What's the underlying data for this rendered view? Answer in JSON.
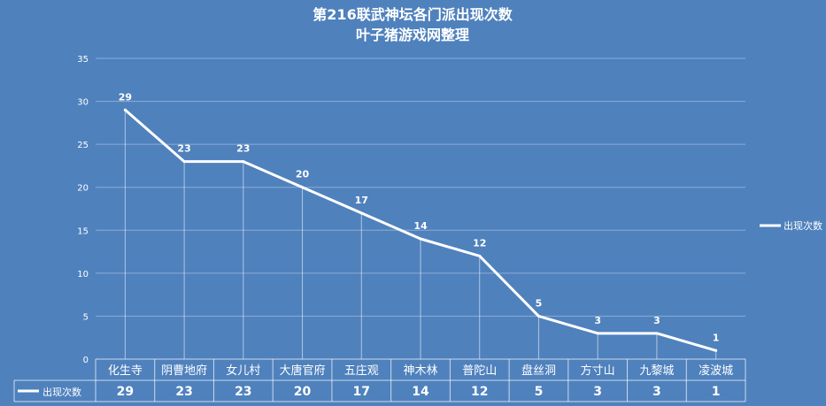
{
  "chart_data": {
    "type": "line",
    "title": "第216联武神坛各门派出现次数",
    "subtitle": "叶子猪游戏网整理",
    "categories": [
      "化生寺",
      "阴曹地府",
      "女儿村",
      "大唐官府",
      "五庄观",
      "神木林",
      "普陀山",
      "盘丝洞",
      "方寸山",
      "九黎城",
      "凌波城"
    ],
    "series": [
      {
        "name": "出现次数",
        "values": [
          29,
          23,
          23,
          20,
          17,
          14,
          12,
          5,
          3,
          3,
          1
        ]
      }
    ],
    "ylim": [
      0,
      35
    ],
    "yticks": [
      0,
      5,
      10,
      15,
      20,
      25,
      30,
      35
    ],
    "grid": true,
    "legend": "right",
    "data_table": true,
    "colors": {
      "background": "#4f81bd",
      "line": "#ffffff"
    }
  }
}
